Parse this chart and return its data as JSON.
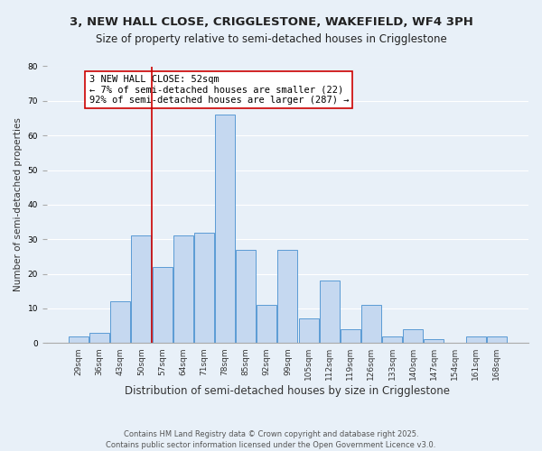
{
  "title": "3, NEW HALL CLOSE, CRIGGLESTONE, WAKEFIELD, WF4 3PH",
  "subtitle": "Size of property relative to semi-detached houses in Crigglestone",
  "xlabel": "Distribution of semi-detached houses by size in Crigglestone",
  "ylabel": "Number of semi-detached properties",
  "bar_labels": [
    "29sqm",
    "36sqm",
    "43sqm",
    "50sqm",
    "57sqm",
    "64sqm",
    "71sqm",
    "78sqm",
    "85sqm",
    "92sqm",
    "99sqm",
    "105sqm",
    "112sqm",
    "119sqm",
    "126sqm",
    "133sqm",
    "140sqm",
    "147sqm",
    "154sqm",
    "161sqm",
    "168sqm"
  ],
  "bar_values": [
    2,
    3,
    12,
    31,
    22,
    31,
    32,
    66,
    27,
    11,
    27,
    7,
    18,
    4,
    11,
    2,
    4,
    1,
    0,
    2,
    2
  ],
  "bar_color": "#c5d8f0",
  "bar_edge_color": "#5b9bd5",
  "background_color": "#e8f0f8",
  "grid_color": "#ffffff",
  "vline_x": 3,
  "vline_color": "#cc0000",
  "annotation_title": "3 NEW HALL CLOSE: 52sqm",
  "annotation_line1": "← 7% of semi-detached houses are smaller (22)",
  "annotation_line2": "92% of semi-detached houses are larger (287) →",
  "annotation_box_color": "#ffffff",
  "annotation_edge_color": "#cc0000",
  "ylim": [
    0,
    80
  ],
  "yticks": [
    0,
    10,
    20,
    30,
    40,
    50,
    60,
    70,
    80
  ],
  "footer1": "Contains HM Land Registry data © Crown copyright and database right 2025.",
  "footer2": "Contains public sector information licensed under the Open Government Licence v3.0.",
  "title_fontsize": 9.5,
  "subtitle_fontsize": 8.5,
  "xlabel_fontsize": 8.5,
  "ylabel_fontsize": 7.5,
  "tick_fontsize": 6.5,
  "annotation_fontsize": 7.5,
  "footer_fontsize": 6.0
}
